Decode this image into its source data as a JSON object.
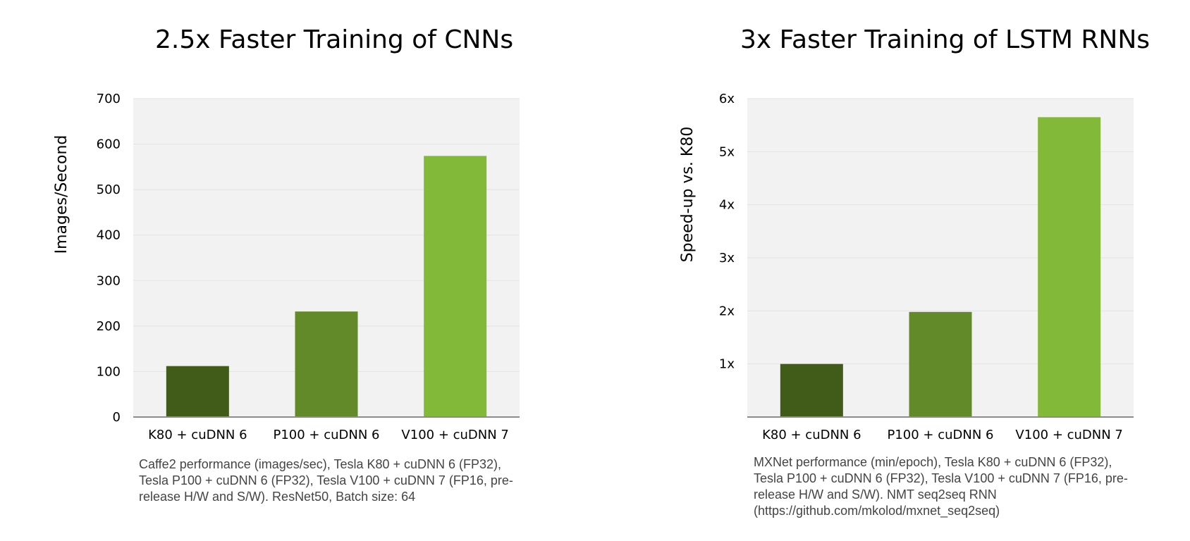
{
  "chart_data": [
    {
      "type": "bar",
      "title": "2.5x Faster Training of CNNs",
      "ylabel": "Images/Second",
      "categories": [
        "K80 + cuDNN 6",
        "P100 + cuDNN 6",
        "V100 + cuDNN 7"
      ],
      "values": [
        112,
        232,
        574
      ],
      "ylim": [
        0,
        700
      ],
      "yticks": [
        0,
        100,
        200,
        300,
        400,
        500,
        600,
        700
      ],
      "ytick_labels": [
        "0",
        "100",
        "200",
        "300",
        "400",
        "500",
        "600",
        "700"
      ],
      "colors": [
        "#415c19",
        "#638a29",
        "#83b939"
      ],
      "plot_background": "#f2f2f2",
      "grid": true,
      "caption": "Caffe2 performance (images/sec), Tesla K80 + cuDNN 6 (FP32), Tesla P100 + cuDNN 6 (FP32), Tesla V100 + cuDNN 7 (FP16, pre-release H/W and S/W). ResNet50, Batch size: 64"
    },
    {
      "type": "bar",
      "title": "3x Faster Training of LSTM RNNs",
      "ylabel": "Speed-up vs. K80",
      "categories": [
        "K80 + cuDNN 6",
        "P100 + cuDNN 6",
        "V100 + cuDNN 7"
      ],
      "values": [
        1.0,
        1.98,
        5.65
      ],
      "ylim": [
        0,
        6
      ],
      "yticks": [
        1,
        2,
        3,
        4,
        5,
        6
      ],
      "ytick_labels": [
        "1x",
        "2x",
        "3x",
        "4x",
        "5x",
        "6x"
      ],
      "colors": [
        "#415c19",
        "#638a29",
        "#83b939"
      ],
      "plot_background": "#f2f2f2",
      "grid": true,
      "caption": "MXNet performance (min/epoch), Tesla K80 + cuDNN 6 (FP32), Tesla P100 + cuDNN 6 (FP32), Tesla V100 + cuDNN 7 (FP16, pre-release H/W and S/W). NMT seq2seq RNN (https://github.com/mkolod/mxnet_seq2seq)"
    }
  ]
}
